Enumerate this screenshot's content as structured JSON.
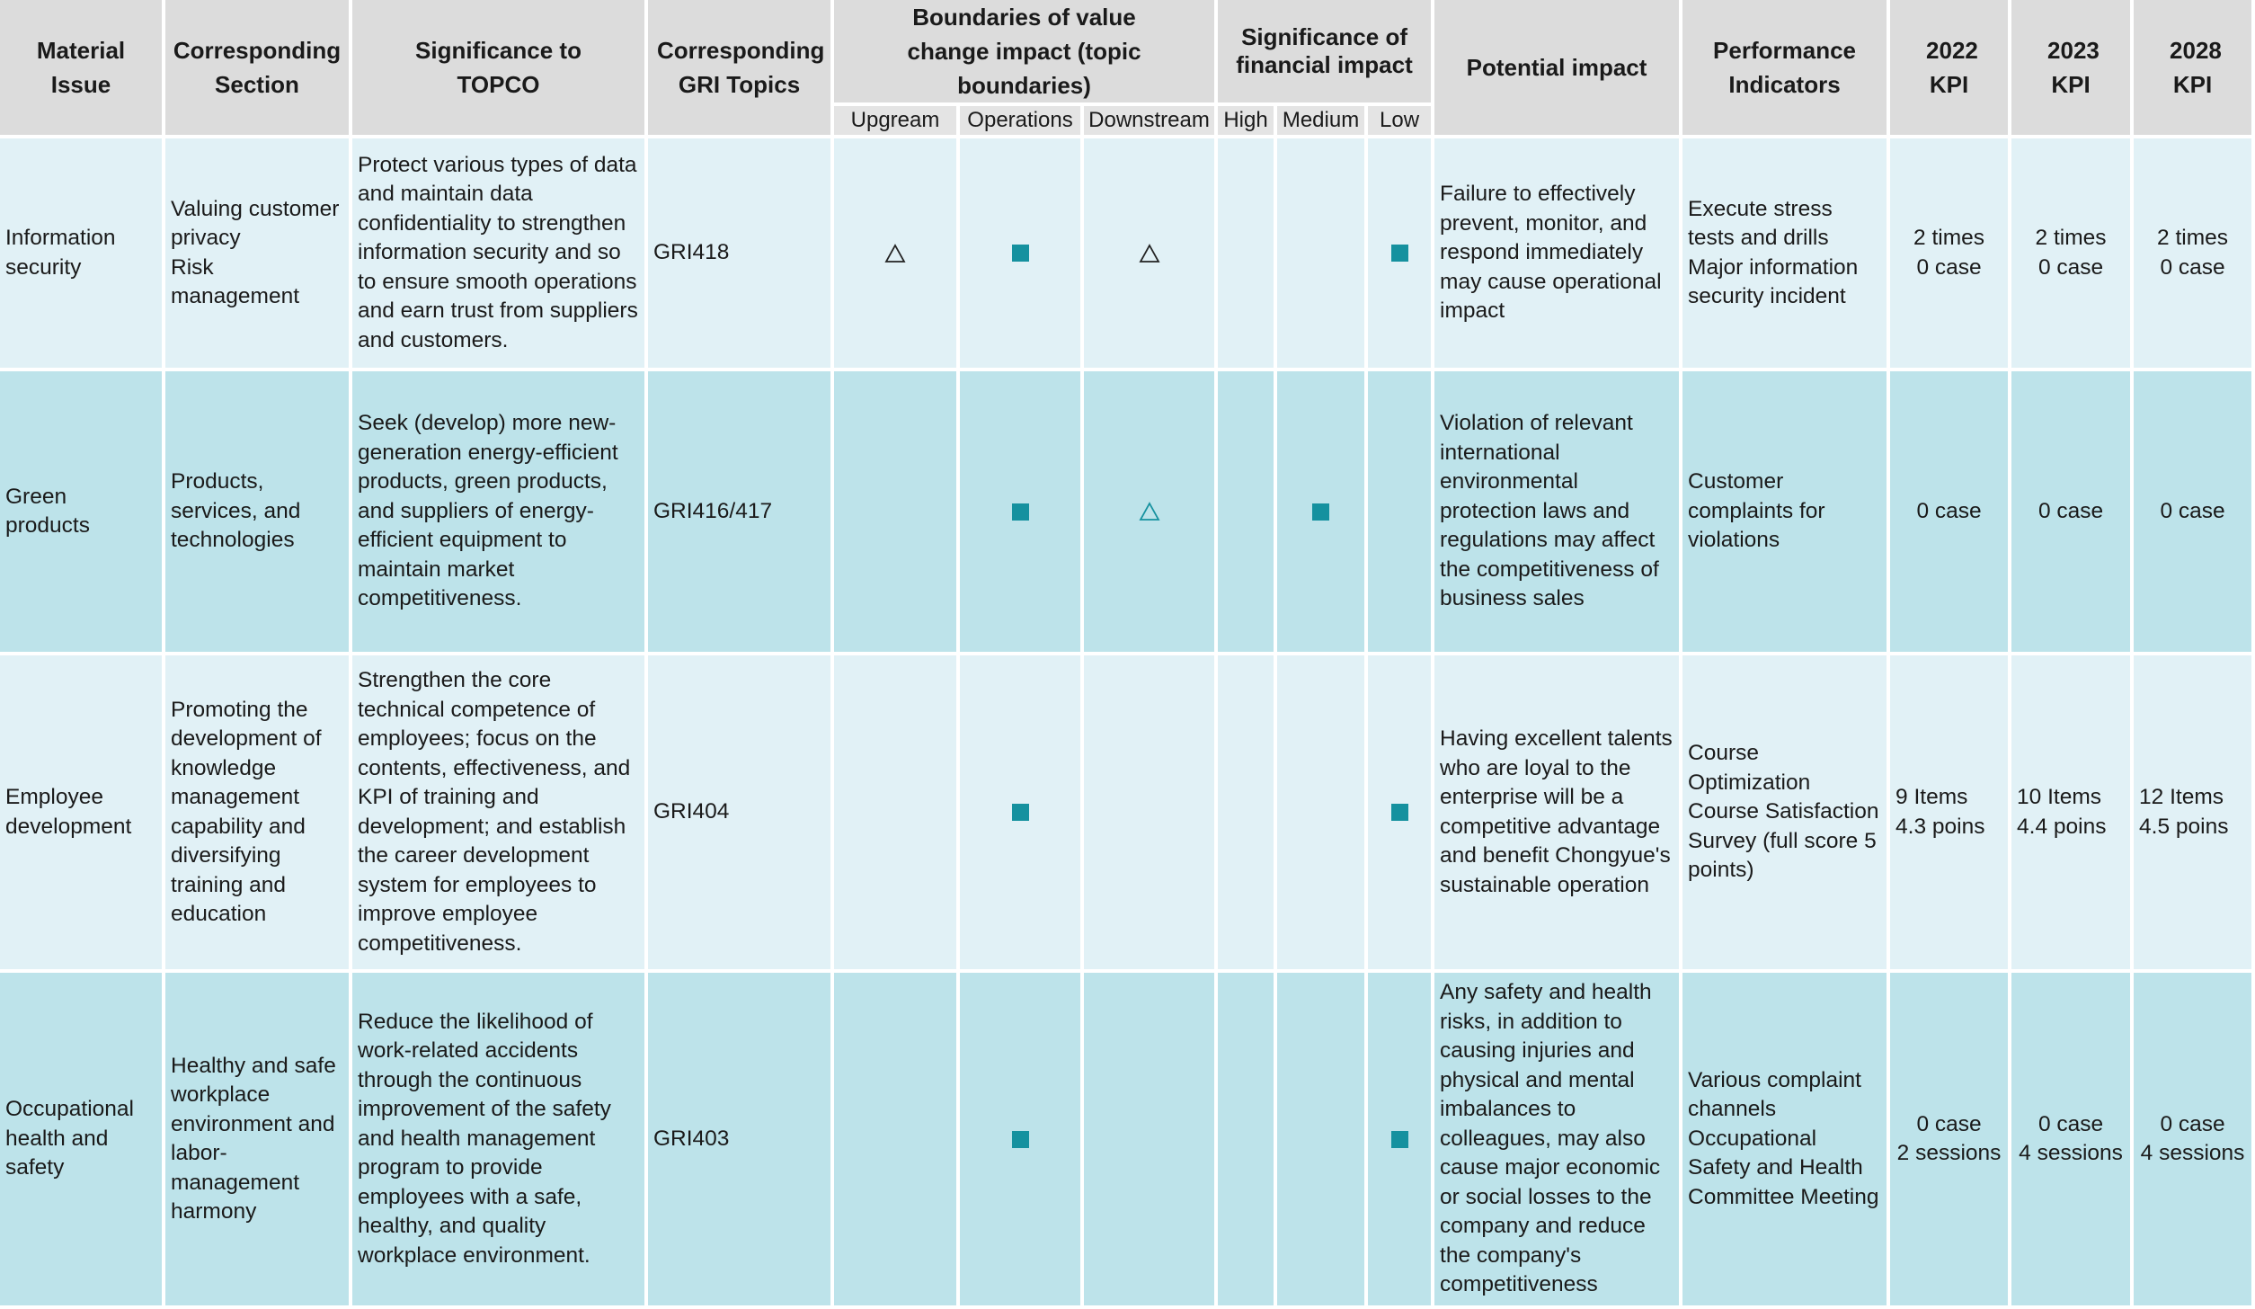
{
  "headers": {
    "material_issue": "Material Issue",
    "section": "Corresponding Section",
    "significance": "Significance to TOPCO",
    "gri": "Corresponding GRI Topics",
    "boundaries": "Boundaries of value change impact (topic boundaries)",
    "upstream": "Upgream",
    "operations": "Operations",
    "downstream": "Downstream",
    "financial": "Significance of financial impact",
    "high": "High",
    "medium": "Medium",
    "low": "Low",
    "potential": "Potential impact",
    "indicators": "Performance Indicators",
    "kpi2022": "2022 KPI",
    "kpi2023": "2023 KPI",
    "kpi2028": "2028 KPI"
  },
  "marker_legend": {
    "square_color": "#15919f",
    "triangle_black": "#222222",
    "triangle_teal": "#15919f"
  },
  "rows": [
    {
      "issue": "Information security",
      "section": [
        "Valuing customer privacy",
        "Risk management"
      ],
      "significance": "Protect various types of data and maintain data confidentiality to strengthen information security and so to ensure smooth operations and earn trust from suppliers and customers.",
      "gri": "GRI418",
      "upstream": "triangle-black",
      "operations": "square",
      "downstream": "triangle-black",
      "high": "",
      "medium": "",
      "low": "square",
      "impact": "Failure to effectively prevent, monitor, and respond immediately may cause operational impact",
      "indicators": [
        "Execute stress tests and drills",
        "Major information security incident"
      ],
      "kpi2022": [
        "2 times",
        "0 case"
      ],
      "kpi2023": [
        "2 times",
        "0 case"
      ],
      "kpi2028": [
        "2 times",
        "0 case"
      ]
    },
    {
      "issue": "Green products",
      "section": [
        "Products, services, and technologies"
      ],
      "significance": "Seek (develop) more new-generation energy-efficient products, green products, and suppliers of energy-efficient equipment to maintain market competitiveness.",
      "gri": "GRI416/417",
      "upstream": "",
      "operations": "square",
      "downstream": "triangle-teal",
      "high": "",
      "medium": "square",
      "low": "",
      "impact": "Violation of relevant international environmental protection laws and regulations may affect the competitiveness of business sales",
      "indicators": [
        "Customer complaints for violations"
      ],
      "kpi2022": [
        "0 case"
      ],
      "kpi2023": [
        "0 case"
      ],
      "kpi2028": [
        "0 case"
      ]
    },
    {
      "issue": "Employee development",
      "section": [
        "Promoting the development of knowledge management capability and diversifying training and education"
      ],
      "significance": "Strengthen the core technical competence of employees; focus on the contents, effectiveness, and KPI of training and development; and establish the career development system for employees to improve employee competitiveness.",
      "gri": "GRI404",
      "upstream": "",
      "operations": "square",
      "downstream": "",
      "high": "",
      "medium": "",
      "low": "square",
      "impact": "Having excellent talents who are loyal to the enterprise will be a competitive advantage and benefit Chongyue's sustainable operation",
      "indicators": [
        "Course Optimization",
        "Course Satisfaction Survey (full score 5 points)"
      ],
      "kpi2022": [
        "9 Items",
        "4.3 poins"
      ],
      "kpi2023": [
        "10 Items",
        "4.4 poins"
      ],
      "kpi2028": [
        "12 Items",
        "4.5 poins"
      ]
    },
    {
      "issue": "Occupational health and safety",
      "section": [
        "Healthy and safe workplace environment and labor-management harmony"
      ],
      "significance": "Reduce the likelihood of work-related accidents through the continuous improvement of the safety and health management program to provide employees with a safe, healthy, and quality workplace environment.",
      "gri": "GRI403",
      "upstream": "",
      "operations": "square",
      "downstream": "",
      "high": "",
      "medium": "",
      "low": "square",
      "impact": "Any safety and health risks, in addition to causing injuries and physical and mental imbalances to colleagues, may also cause major economic or social losses to the company and reduce the company's competitiveness",
      "indicators": [
        "Various complaint channels",
        "Occupational Safety and Health Committee Meeting"
      ],
      "kpi2022": [
        "0 case",
        "2 sessions"
      ],
      "kpi2023": [
        "0 case",
        "4 sessions"
      ],
      "kpi2028": [
        "0 case",
        "4 sessions"
      ]
    }
  ]
}
